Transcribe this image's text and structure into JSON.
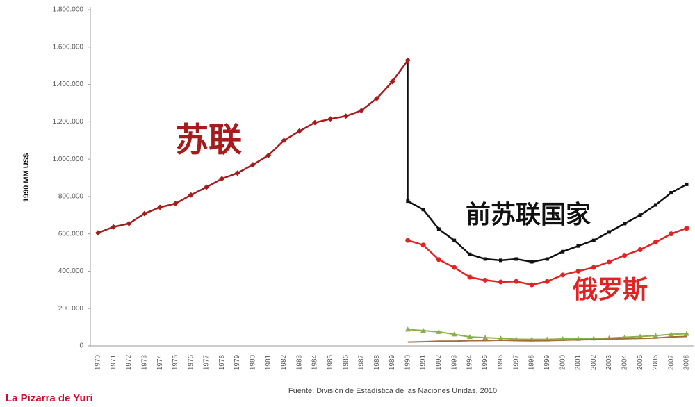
{
  "chart_data": {
    "type": "line",
    "y_label": "1990 MM US$",
    "source": "Fuente: División de Estadística de las Naciones Unidas, 2010",
    "watermark": "La Pizarra de Yuri",
    "x": [
      "1970",
      "1971",
      "1972",
      "1973",
      "1974",
      "1975",
      "1976",
      "1977",
      "1978",
      "1979",
      "1980",
      "1981",
      "1982",
      "1983",
      "1984",
      "1985",
      "1986",
      "1987",
      "1988",
      "1989",
      "1990",
      "1991",
      "1992",
      "1993",
      "1994",
      "1995",
      "1996",
      "1997",
      "1998",
      "1999",
      "2000",
      "2001",
      "2002",
      "2003",
      "2004",
      "2005",
      "2006",
      "2007",
      "2008"
    ],
    "ylim": [
      0,
      1800000
    ],
    "yticks": [
      0,
      {
        "value": 200000,
        "label": "200.000"
      },
      {
        "value": 400000,
        "label": "400.000"
      },
      {
        "value": 600000,
        "label": "600.000"
      },
      {
        "value": 800000,
        "label": "800.000"
      },
      {
        "value": 1000000,
        "label": "1.000.000"
      },
      {
        "value": 1200000,
        "label": "1.200.000"
      },
      {
        "value": 1400000,
        "label": "1.400.000"
      },
      {
        "value": 1600000,
        "label": "1.600.000"
      },
      {
        "value": 1800000,
        "label": "1.800.000"
      }
    ],
    "series": [
      {
        "name": "苏联",
        "color": "#a51c1c",
        "marker": "diamond",
        "values": [
          605000,
          637000,
          655000,
          708000,
          742000,
          762000,
          808000,
          850000,
          895000,
          925000,
          970000,
          1020000,
          1100000,
          1150000,
          1195000,
          1215000,
          1230000,
          1260000,
          1325000,
          1415000,
          1530000,
          null,
          null,
          null,
          null,
          null,
          null,
          null,
          null,
          null,
          null,
          null,
          null,
          null,
          null,
          null,
          null,
          null,
          null
        ]
      },
      {
        "name": "前苏联国家",
        "color": "#111111",
        "marker": "square",
        "values": [
          null,
          null,
          null,
          null,
          null,
          null,
          null,
          null,
          null,
          null,
          null,
          null,
          null,
          null,
          null,
          null,
          null,
          null,
          null,
          null,
          775000,
          730000,
          625000,
          565000,
          490000,
          465000,
          458000,
          465000,
          450000,
          465000,
          505000,
          535000,
          565000,
          610000,
          655000,
          700000,
          755000,
          820000,
          865000
        ]
      },
      {
        "name": "俄罗斯",
        "color": "#e02424",
        "marker": "circle",
        "values": [
          null,
          null,
          null,
          null,
          null,
          null,
          null,
          null,
          null,
          null,
          null,
          null,
          null,
          null,
          null,
          null,
          null,
          null,
          null,
          null,
          565000,
          540000,
          462000,
          420000,
          368000,
          352000,
          342000,
          345000,
          327000,
          345000,
          380000,
          400000,
          420000,
          450000,
          485000,
          515000,
          555000,
          600000,
          630000
        ]
      },
      {
        "color": "#8ab04a",
        "marker": "triangle",
        "values": [
          null,
          null,
          null,
          null,
          null,
          null,
          null,
          null,
          null,
          null,
          null,
          null,
          null,
          null,
          null,
          null,
          null,
          null,
          null,
          null,
          88000,
          82000,
          75000,
          62000,
          48000,
          44000,
          40000,
          36000,
          35000,
          35000,
          37000,
          38000,
          40000,
          42000,
          46000,
          50000,
          55000,
          62000,
          65000
        ]
      },
      {
        "color": "#a0703a",
        "marker": "none",
        "values": [
          null,
          null,
          null,
          null,
          null,
          null,
          null,
          null,
          null,
          null,
          null,
          null,
          null,
          null,
          null,
          null,
          null,
          null,
          null,
          null,
          20000,
          22000,
          25000,
          25000,
          28000,
          28000,
          30000,
          28000,
          27000,
          28000,
          30000,
          32000,
          34000,
          36000,
          38000,
          40000,
          42000,
          48000,
          50000
        ]
      }
    ]
  }
}
